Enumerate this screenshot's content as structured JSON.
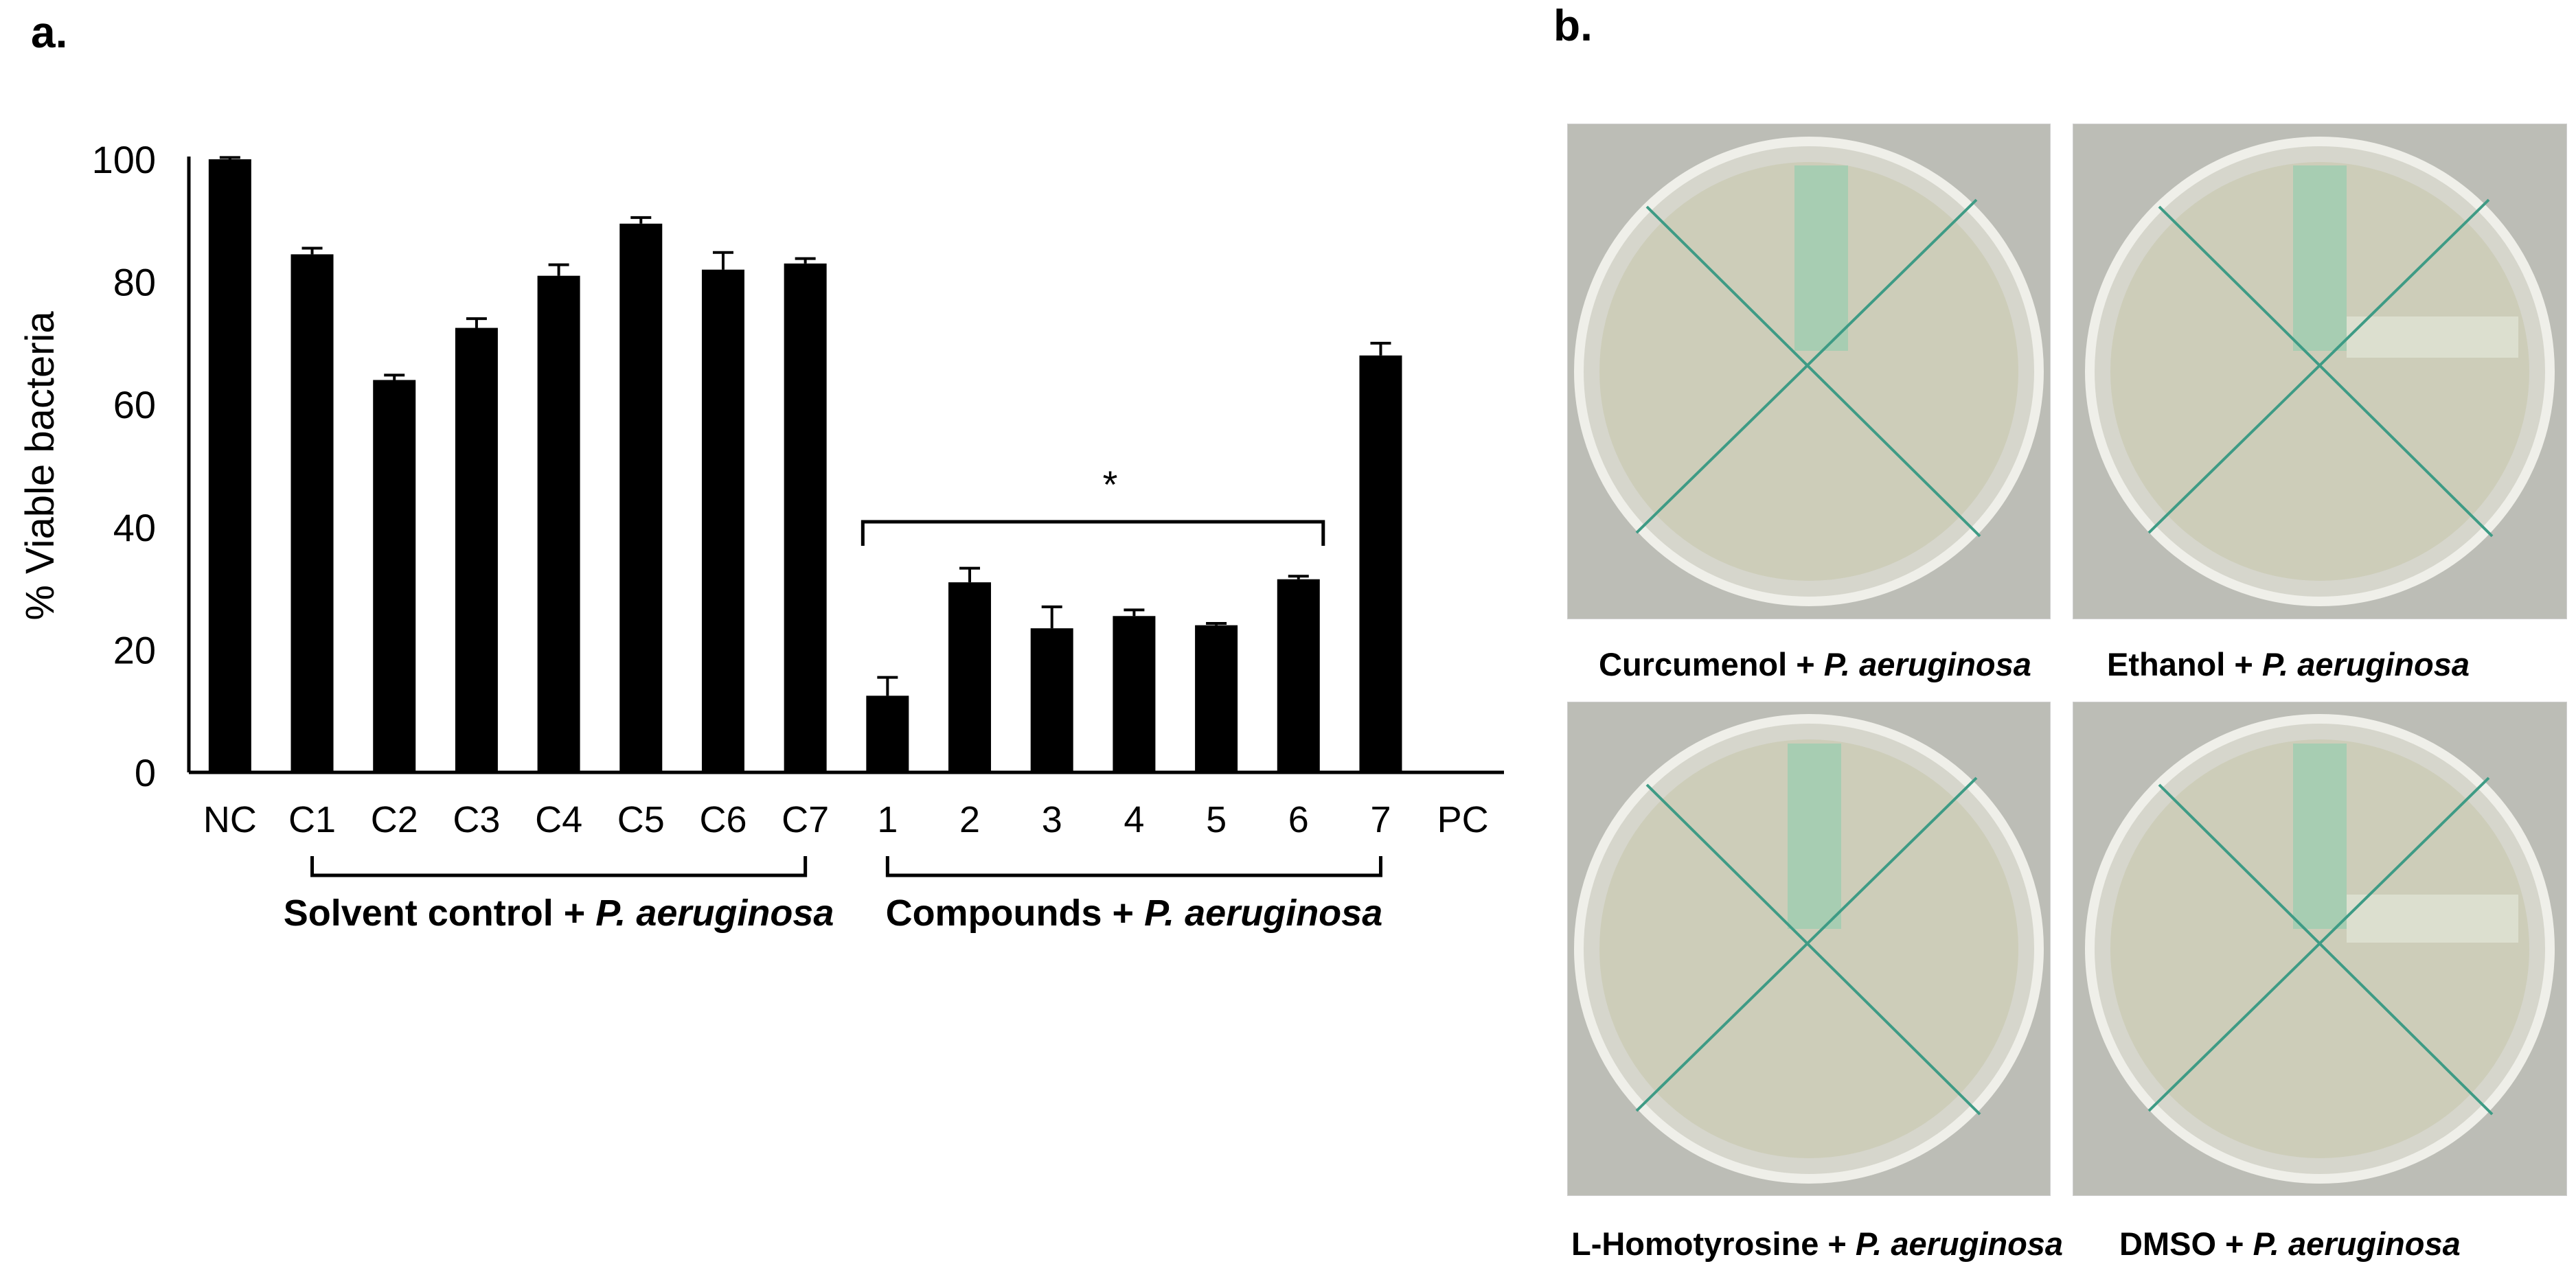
{
  "panel_a_label": "a.",
  "panel_b_label": "b.",
  "chart_data": {
    "type": "bar",
    "title": "",
    "xlabel": "",
    "ylabel": "% Viable bacteria",
    "ylim": [
      0,
      100
    ],
    "yticks": [
      0,
      20,
      40,
      60,
      80,
      100
    ],
    "categories": [
      "NC",
      "C1",
      "C2",
      "C3",
      "C4",
      "C5",
      "C6",
      "C7",
      "1",
      "2",
      "3",
      "4",
      "5",
      "6",
      "7",
      "PC"
    ],
    "values": [
      100,
      84.5,
      64,
      72.5,
      81,
      89.5,
      82,
      83,
      12.5,
      31,
      23.5,
      25.5,
      24,
      31.5,
      68,
      0
    ],
    "errors": [
      0.3,
      1,
      0.8,
      1.5,
      1.8,
      1,
      2.8,
      0.8,
      3,
      2.3,
      3.5,
      1,
      0.3,
      0.5,
      2,
      0
    ],
    "bar_color": "#000000",
    "grid": false,
    "groups": [
      {
        "prefix": "Solvent control + ",
        "italic": "P. aeruginosa",
        "from": "C1",
        "to": "C7"
      },
      {
        "prefix": "Compounds + ",
        "italic": "P. aeruginosa",
        "from": "1",
        "to": "7"
      }
    ],
    "significance": {
      "label": "*",
      "from": "1",
      "to": "6"
    }
  },
  "plates": [
    {
      "caption_prefix": "Curcumenol + ",
      "caption_italic": "P. aeruginosa"
    },
    {
      "caption_prefix": "Ethanol + ",
      "caption_italic": "P. aeruginosa"
    },
    {
      "caption_prefix": "L-Homotyrosine + ",
      "caption_italic": "P. aeruginosa"
    },
    {
      "caption_prefix": "DMSO + ",
      "caption_italic": "P. aeruginosa"
    }
  ]
}
